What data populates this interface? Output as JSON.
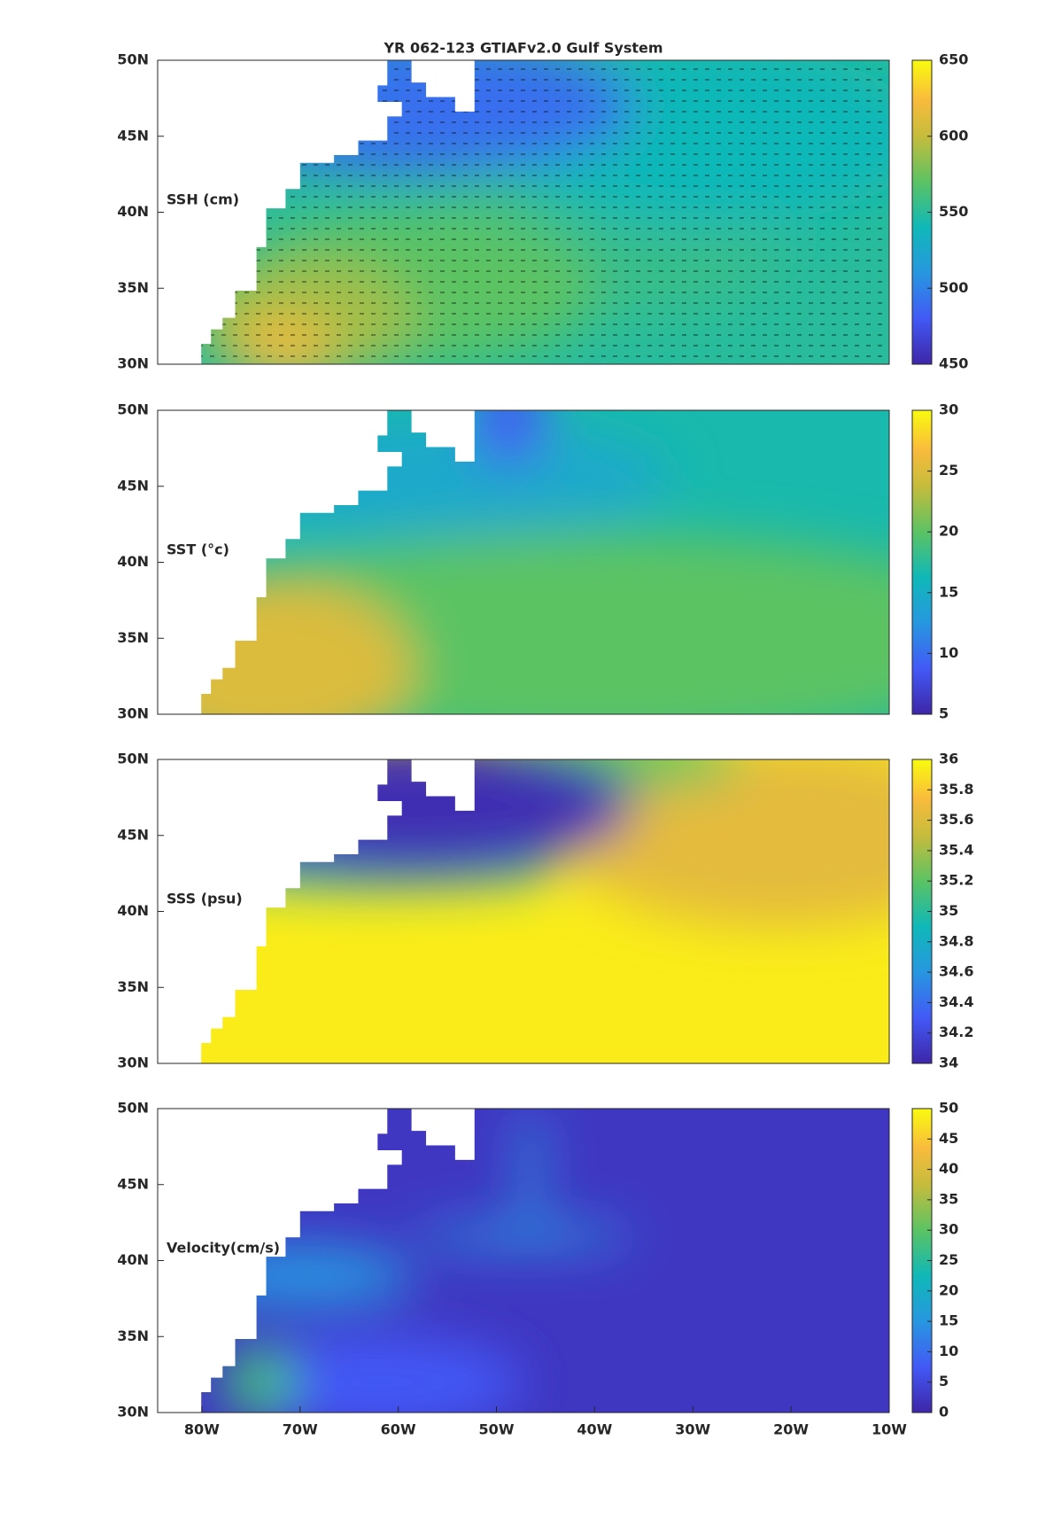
{
  "title": "YR 062-123 GTIAFv2.0 Gulf System",
  "chart_data": [
    {
      "type": "map",
      "label": "SSH (cm)",
      "quiver": true,
      "xlim": [
        -84.5,
        -10
      ],
      "ylim": [
        30,
        50
      ],
      "yticks": [
        {
          "value": 30,
          "label": "30N"
        },
        {
          "value": 35,
          "label": "35N"
        },
        {
          "value": 40,
          "label": "40N"
        },
        {
          "value": 45,
          "label": "45N"
        },
        {
          "value": 50,
          "label": "50N"
        }
      ],
      "clim": [
        450,
        650
      ],
      "cticks": [
        450,
        500,
        550,
        600,
        650
      ]
    },
    {
      "type": "map",
      "label": "SST (°c)",
      "xlim": [
        -84.5,
        -10
      ],
      "ylim": [
        30,
        50
      ],
      "yticks": [
        {
          "value": 30,
          "label": "30N"
        },
        {
          "value": 35,
          "label": "35N"
        },
        {
          "value": 40,
          "label": "40N"
        },
        {
          "value": 45,
          "label": "45N"
        },
        {
          "value": 50,
          "label": "50N"
        }
      ],
      "clim": [
        5,
        30
      ],
      "cticks": [
        5,
        10,
        15,
        20,
        25,
        30
      ]
    },
    {
      "type": "map",
      "label": "SSS (psu)",
      "xlim": [
        -84.5,
        -10
      ],
      "ylim": [
        30,
        50
      ],
      "yticks": [
        {
          "value": 30,
          "label": "30N"
        },
        {
          "value": 35,
          "label": "35N"
        },
        {
          "value": 40,
          "label": "40N"
        },
        {
          "value": 45,
          "label": "45N"
        },
        {
          "value": 50,
          "label": "50N"
        }
      ],
      "clim": [
        34,
        36
      ],
      "cticks": [
        34,
        34.2,
        34.4,
        34.6,
        34.8,
        35,
        35.2,
        35.4,
        35.6,
        35.8,
        36
      ]
    },
    {
      "type": "map",
      "label": "Velocity(cm/s)",
      "xlim": [
        -84.5,
        -10
      ],
      "ylim": [
        30,
        50
      ],
      "yticks": [
        {
          "value": 30,
          "label": "30N"
        },
        {
          "value": 35,
          "label": "35N"
        },
        {
          "value": 40,
          "label": "40N"
        },
        {
          "value": 45,
          "label": "45N"
        },
        {
          "value": 50,
          "label": "50N"
        }
      ],
      "xticks": [
        {
          "value": -80,
          "label": "80W"
        },
        {
          "value": -70,
          "label": "70W"
        },
        {
          "value": -60,
          "label": "60W"
        },
        {
          "value": -50,
          "label": "50W"
        },
        {
          "value": -40,
          "label": "40W"
        },
        {
          "value": -30,
          "label": "30W"
        },
        {
          "value": -20,
          "label": "20W"
        },
        {
          "value": -10,
          "label": "10W"
        }
      ],
      "clim": [
        0,
        50
      ],
      "cticks": [
        0,
        5,
        10,
        15,
        20,
        25,
        30,
        35,
        40,
        45,
        50
      ]
    }
  ]
}
